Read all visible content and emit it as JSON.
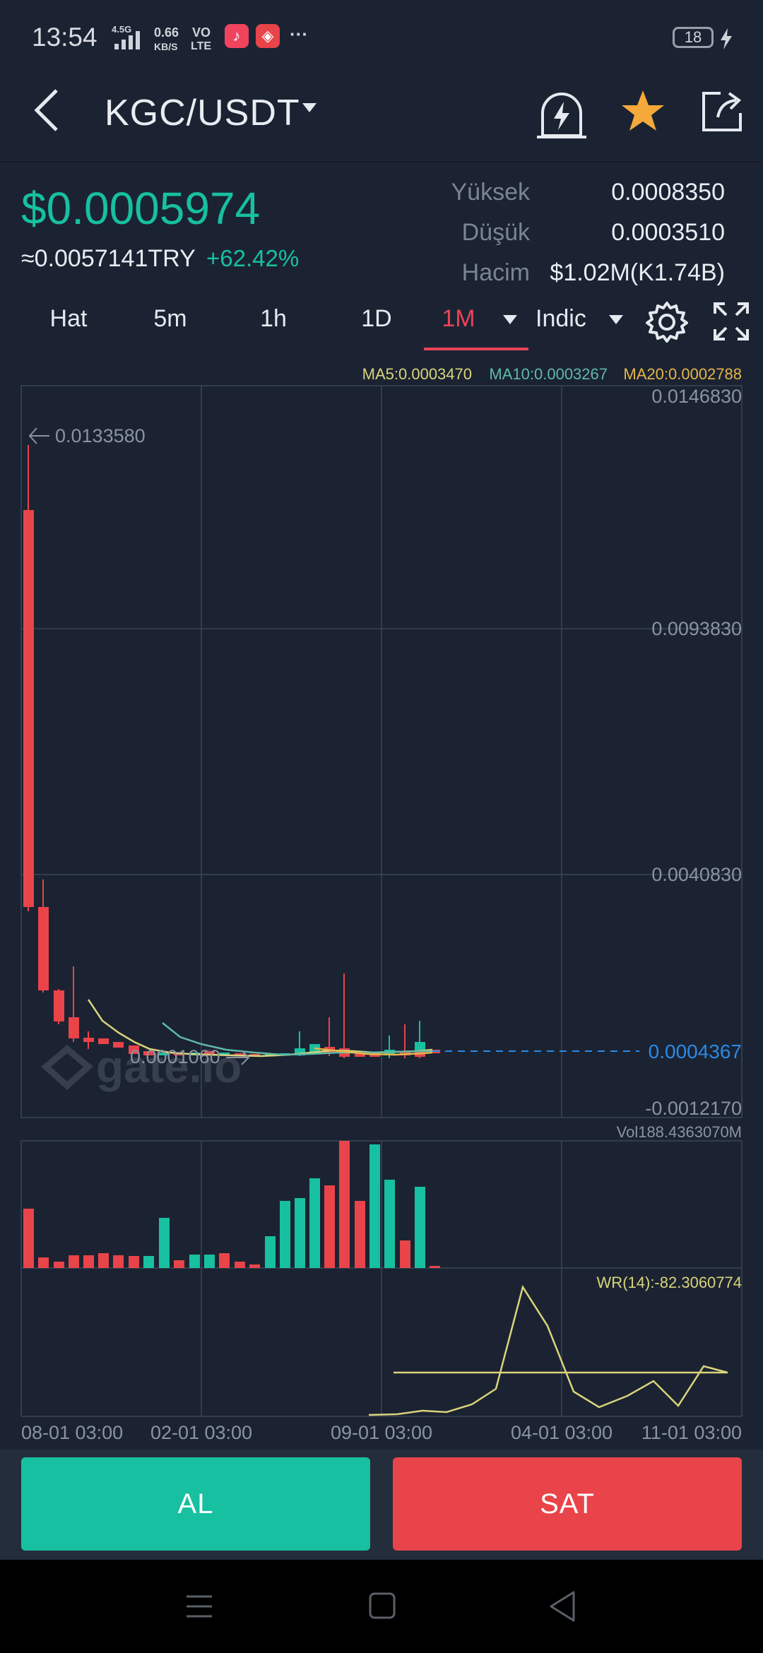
{
  "status_bar": {
    "time": "13:54",
    "network": "4.5G",
    "speed_value": "0.66",
    "speed_unit": "KB/S",
    "volte_top": "VO",
    "volte_bottom": "LTE",
    "more": "···",
    "battery": "18"
  },
  "header": {
    "pair": "KGC/USDT"
  },
  "ticker": {
    "price": "$0.0005974",
    "fiat": "≈0.0057141TRY",
    "change": "+62.42%",
    "high_label": "Yüksek",
    "high_value": "0.0008350",
    "low_label": "Düşük",
    "low_value": "0.0003510",
    "volume_label": "Hacim",
    "volume_value": "$1.02M(K1.74B)"
  },
  "tabs": {
    "line": "Hat",
    "m5": "5m",
    "h1": "1h",
    "d1": "1D",
    "month": "1M",
    "indicator": "Indic"
  },
  "colors": {
    "background": "#1b2332",
    "up": "#17c0a0",
    "down": "#e8444a",
    "accent": "#e8445a",
    "price_line": "#2a8ae6"
  },
  "chart": {
    "ma5": "MA5:0.0003470",
    "ma10": "MA10:0.0003267",
    "ma20": "MA20:0.0002788",
    "y_labels": [
      "0.0146830",
      "0.0093830",
      "0.0040830",
      "-0.0012170"
    ],
    "current_price": "0.0004367",
    "high_marker": "0.0133580",
    "low_marker": "0.0001060",
    "watermark": "gate.io",
    "vol_label": "Vol188.4363070M",
    "wr_label": "WR(14):-82.3060774",
    "x_labels": [
      "08-01 03:00",
      "02-01 03:00",
      "09-01 03:00",
      "04-01 03:00",
      "11-01 03:00"
    ]
  },
  "actions": {
    "buy": "AL",
    "sell": "SAT"
  }
}
